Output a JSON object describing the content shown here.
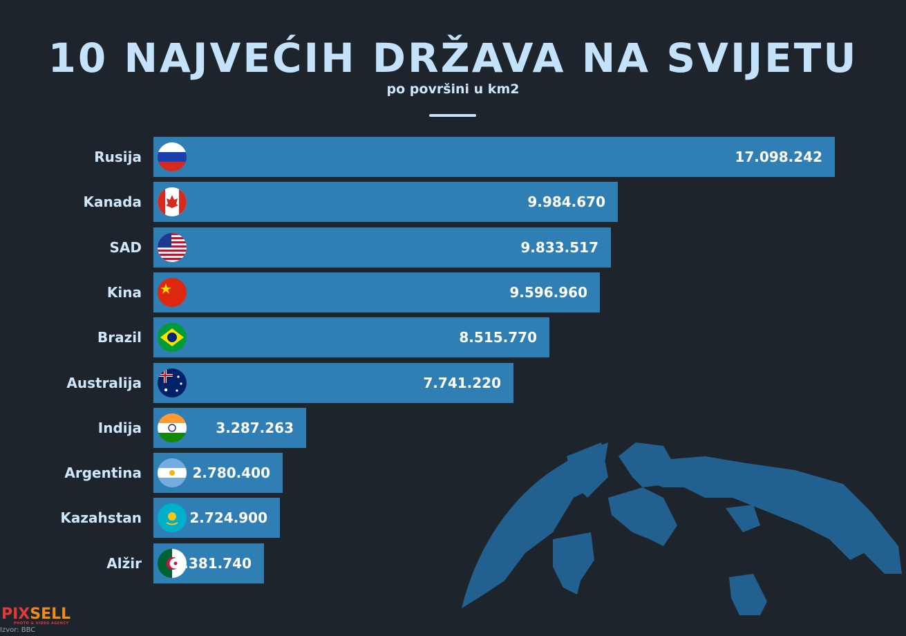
{
  "title": "10 NAJVEĆIH DRŽAVA NA SVIJETU",
  "subtitle": "po površini u km2",
  "colors": {
    "background": "#1d242b",
    "bar": "#2f7fb5",
    "title": "#c4e3fb",
    "globe": "#22618f"
  },
  "chart_data": {
    "type": "bar",
    "orientation": "horizontal",
    "title": "10 NAJVEĆIH DRŽAVA NA SVIJETU",
    "subtitle": "po površini u km2",
    "categories": [
      "Rusija",
      "Kanada",
      "SAD",
      "Kina",
      "Brazil",
      "Australija",
      "Indija",
      "Argentina",
      "Kazahstan",
      "Alžir"
    ],
    "values": [
      17098242,
      9984670,
      9833517,
      9596960,
      8515770,
      7741220,
      3287263,
      2780400,
      2724900,
      2381740
    ],
    "value_labels": [
      "17.098.242",
      "9.984.670",
      "9.833.517",
      "9.596.960",
      "8.515.770",
      "7.741.220",
      "3.287.263",
      "2.780.400",
      "2.724.900",
      "2.381.740"
    ],
    "flags": [
      "russia-flag-icon",
      "canada-flag-icon",
      "usa-flag-icon",
      "china-flag-icon",
      "brazil-flag-icon",
      "australia-flag-icon",
      "india-flag-icon",
      "argentina-flag-icon",
      "kazakhstan-flag-icon",
      "algeria-flag-icon"
    ]
  },
  "footer": {
    "logo_a": "PIX",
    "logo_b": "SELL",
    "tagline": "PHOTO & VIDEO AGENCY",
    "source": "Izvor: BBC"
  }
}
